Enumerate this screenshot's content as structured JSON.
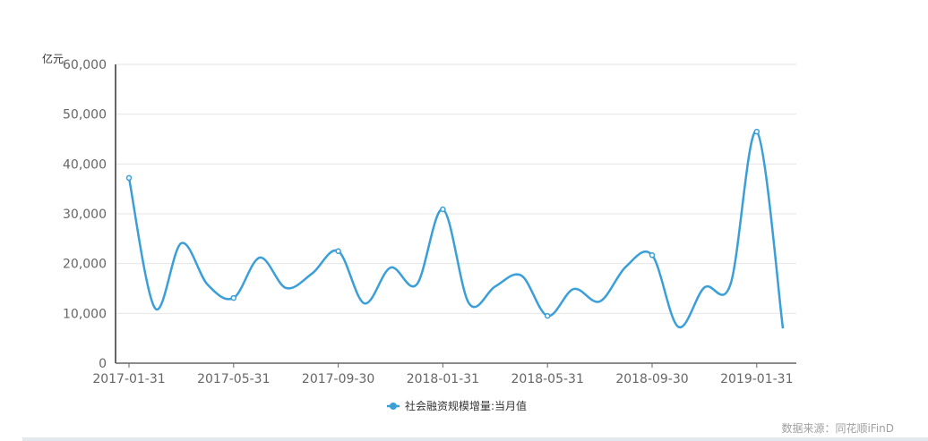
{
  "chart_data": {
    "type": "line",
    "title": "",
    "ylabel": "亿元",
    "xlabel": "",
    "ylim": [
      0,
      60000
    ],
    "yticks": [
      "0",
      "10,000",
      "20,000",
      "30,000",
      "40,000",
      "50,000",
      "60,000"
    ],
    "ytick_values": [
      0,
      10000,
      20000,
      30000,
      40000,
      50000,
      60000
    ],
    "xtick_labels": [
      "2017-01-31",
      "2017-05-31",
      "2017-09-30",
      "2018-01-31",
      "2018-05-31",
      "2018-09-30",
      "2019-01-31"
    ],
    "grid": true,
    "legend_position": "bottom",
    "smooth": true,
    "color": "#3a9fd8",
    "series": [
      {
        "name": "社会融资规模增量:当月值",
        "x": [
          "2017-01-31",
          "2017-02-28",
          "2017-03-31",
          "2017-04-30",
          "2017-05-31",
          "2017-06-30",
          "2017-07-31",
          "2017-08-31",
          "2017-09-30",
          "2017-10-31",
          "2017-11-30",
          "2017-12-31",
          "2018-01-31",
          "2018-02-28",
          "2018-03-31",
          "2018-04-30",
          "2018-05-31",
          "2018-06-30",
          "2018-07-31",
          "2018-08-31",
          "2018-09-30",
          "2018-10-31",
          "2018-11-30",
          "2018-12-31",
          "2019-01-31",
          "2019-02-28"
        ],
        "values": [
          37200,
          11000,
          24100,
          15800,
          13100,
          21200,
          15100,
          18000,
          22500,
          12000,
          19200,
          15800,
          30900,
          12000,
          15400,
          17600,
          9500,
          14900,
          12400,
          19400,
          21700,
          7300,
          15200,
          15900,
          46500,
          7000
        ]
      }
    ]
  },
  "source_label": "数据来源：同花顺iFinD"
}
